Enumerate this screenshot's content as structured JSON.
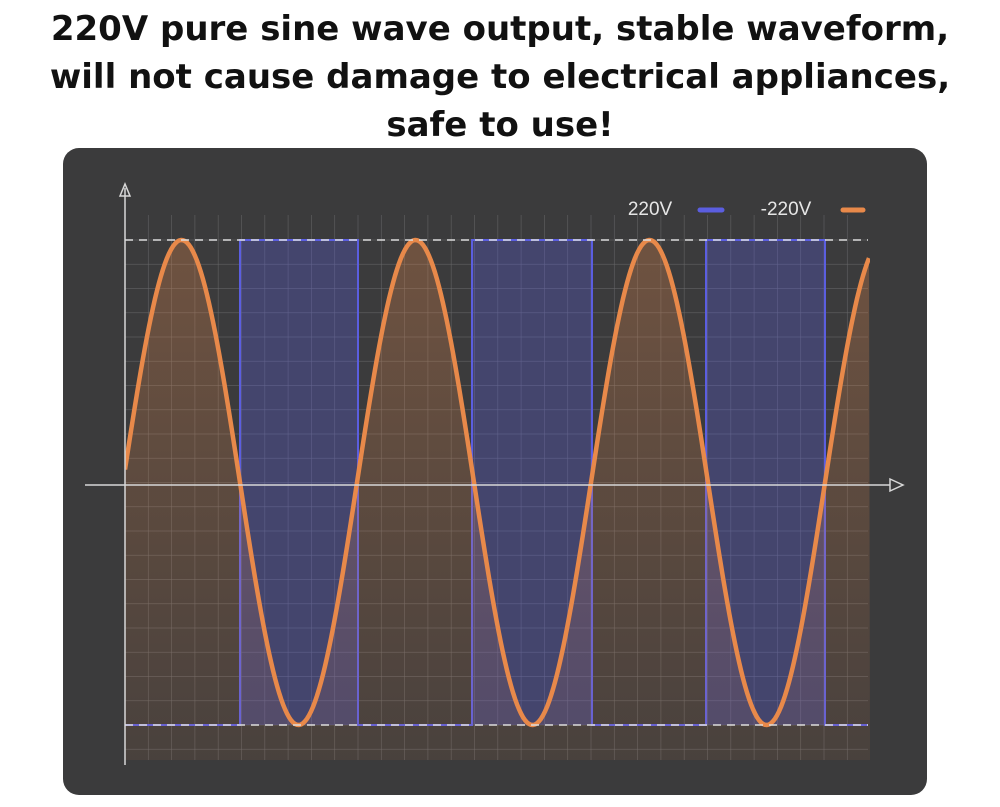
{
  "header": {
    "title_lines": [
      "220V pure sine wave output, stable waveform,",
      "will not cause damage to electrical appliances,",
      "safe to use!"
    ]
  },
  "legend": [
    {
      "label": "220V",
      "color": "#5b5ee0"
    },
    {
      "label": "-220V",
      "color": "#e8894a"
    }
  ]
}
